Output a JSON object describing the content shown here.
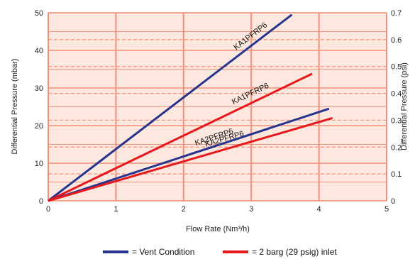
{
  "chart_data": {
    "type": "line",
    "xlabel": "Flow Rate (Nm³/h)",
    "ylabel": "Differential Pressure (mbar)",
    "y2label": "Differential Pressure (psi)",
    "xlim": [
      0,
      5
    ],
    "ylim": [
      0,
      50
    ],
    "y2lim": [
      0,
      0.7
    ],
    "x_ticks": [
      "0",
      "1",
      "2",
      "3",
      "4",
      "5"
    ],
    "y_ticks": [
      "0",
      "10",
      "20",
      "30",
      "40",
      "50"
    ],
    "y2_ticks": [
      "0",
      "0.1",
      "0.2",
      "0.3",
      "0.4",
      "0.5",
      "0.6",
      "0.7"
    ],
    "grid": true,
    "background": "#fde8df",
    "grid_color": "#f2907a",
    "series": [
      {
        "name": "KA1PFRP6",
        "condition": "vent",
        "color": "#27358f",
        "x": [
          0,
          3.6
        ],
        "y": [
          0,
          49.5
        ]
      },
      {
        "name": "KA1PFRP6",
        "condition": "inlet",
        "color": "#e8191c",
        "x": [
          0,
          3.9
        ],
        "y": [
          0,
          33.8
        ]
      },
      {
        "name": "KA2PFRP6",
        "condition": "vent",
        "color": "#27358f",
        "x": [
          0,
          4.15
        ],
        "y": [
          0,
          24.5
        ]
      },
      {
        "name": "KA2PFRP6",
        "condition": "inlet",
        "color": "#e8191c",
        "x": [
          0,
          4.2
        ],
        "y": [
          0,
          22
        ]
      }
    ],
    "legend": {
      "placement": "bottom",
      "entries": [
        {
          "label": "= Vent Condition",
          "color": "#27358f"
        },
        {
          "label": "= 2 barg (29 psig) inlet",
          "color": "#e8191c"
        }
      ]
    }
  }
}
